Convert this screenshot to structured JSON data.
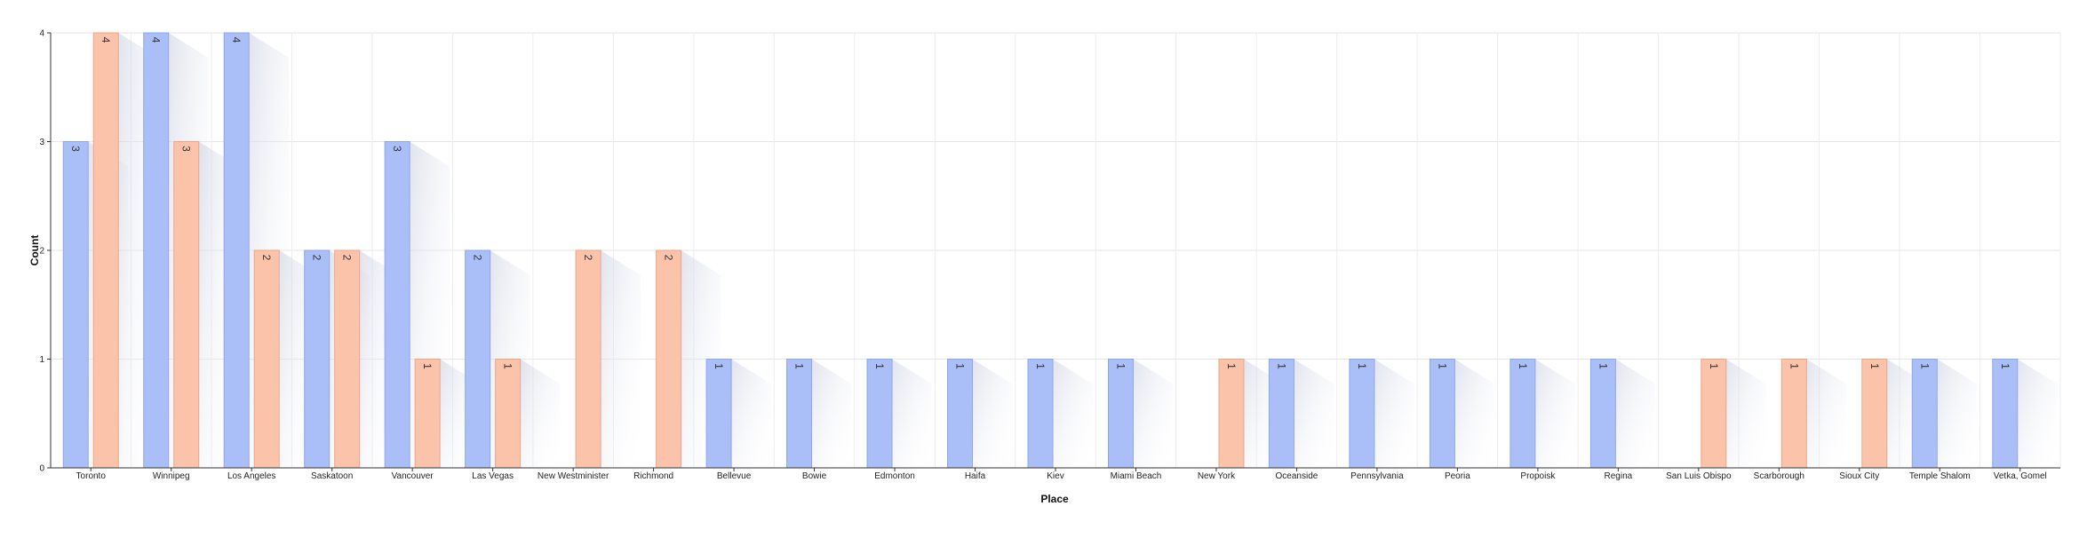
{
  "chart_data": {
    "type": "bar",
    "xlabel": "Place",
    "ylabel": "Count",
    "ylim": [
      0,
      4
    ],
    "yticks": [
      0,
      1,
      2,
      3,
      4
    ],
    "grid": true,
    "categories": [
      "Toronto",
      "Winnipeg",
      "Los Angeles",
      "Saskatoon",
      "Vancouver",
      "Las Vegas",
      "New Westminister",
      "Richmond",
      "Bellevue",
      "Bowie",
      "Edmonton",
      "Haifa",
      "Kiev",
      "Miami Beach",
      "New York",
      "Oceanside",
      "Pennsylvania",
      "Peoria",
      "Propoisk",
      "Regina",
      "San Luis Obispo",
      "Scarborough",
      "Sioux City",
      "Temple Shalom",
      "Vetka, Gomel"
    ],
    "series": [
      {
        "color": "#aabff8",
        "values": [
          3,
          4,
          4,
          2,
          3,
          2,
          0,
          0,
          1,
          1,
          1,
          1,
          1,
          1,
          0,
          1,
          1,
          1,
          1,
          1,
          0,
          0,
          0,
          1,
          1
        ]
      },
      {
        "color": "#fcc3ab",
        "values": [
          4,
          3,
          2,
          2,
          1,
          1,
          2,
          2,
          0,
          0,
          0,
          0,
          0,
          0,
          1,
          0,
          0,
          0,
          0,
          0,
          1,
          1,
          1,
          0,
          0
        ]
      }
    ]
  }
}
